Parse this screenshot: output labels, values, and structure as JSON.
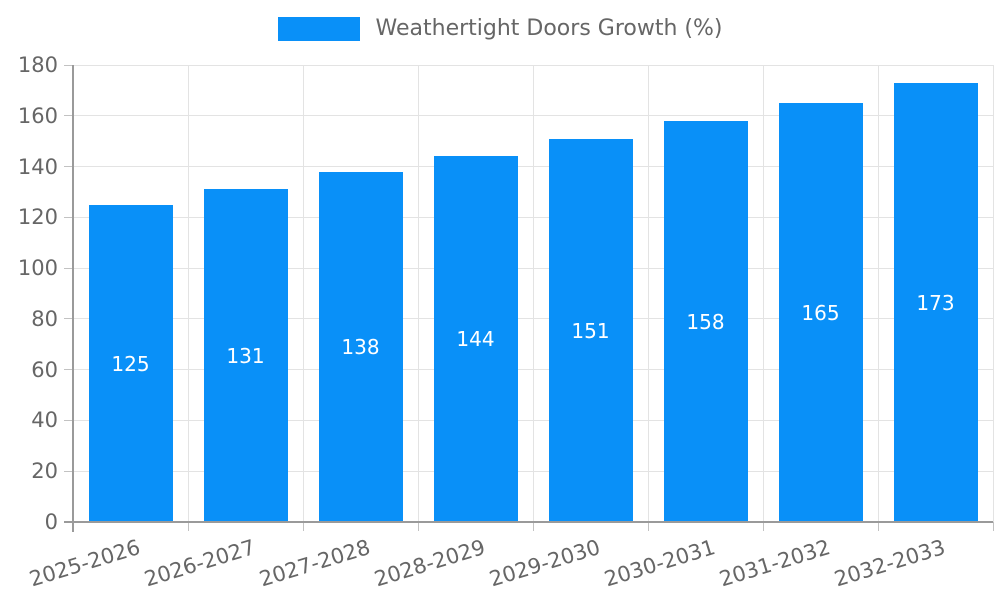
{
  "legend": {
    "label": "Weathertight Doors Growth (%)"
  },
  "colors": {
    "bar": "#0990f8",
    "text": "#666666",
    "grid": "#e3e3e3",
    "axis": "#9a9a9a",
    "tick": "#c2c2c2",
    "value_label": "#ffffff",
    "background": "#ffffff"
  },
  "chart_data": {
    "type": "bar",
    "title": "",
    "xlabel": "",
    "ylabel": "",
    "categories": [
      "2025-2026",
      "2026-2027",
      "2027-2028",
      "2028-2029",
      "2029-2030",
      "2030-2031",
      "2031-2032",
      "2032-2033"
    ],
    "series": [
      {
        "name": "Weathertight Doors Growth (%)",
        "values": [
          125,
          131,
          138,
          144,
          151,
          158,
          165,
          173
        ]
      }
    ],
    "ylim": [
      0,
      180
    ],
    "ytick_step": 20,
    "yticks": [
      0,
      20,
      40,
      60,
      80,
      100,
      120,
      140,
      160,
      180
    ],
    "grid": true,
    "legend_position": "top",
    "value_labels": "inside-center",
    "x_label_rotation_deg": -17
  }
}
